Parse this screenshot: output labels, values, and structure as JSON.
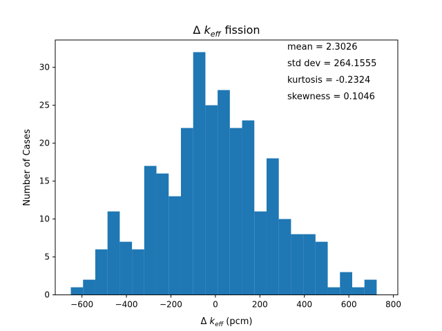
{
  "chart_data": {
    "type": "bar",
    "title_prefix": "Δ ",
    "title_k": "k",
    "title_sub": "eff",
    "title_suffix": "fission",
    "xlabel_prefix": "Δ ",
    "xlabel_k": "k",
    "xlabel_sub": "eff",
    "xlabel_suffix": " (pcm)",
    "ylabel": "Number of Cases",
    "xlim": [
      -720,
      820
    ],
    "ylim": [
      0,
      33.6
    ],
    "x_ticks": [
      -600,
      -400,
      -200,
      0,
      200,
      400,
      600,
      800
    ],
    "x_tick_labels": [
      "−600",
      "−400",
      "−200",
      "0",
      "200",
      "400",
      "600",
      "800"
    ],
    "y_ticks": [
      0,
      5,
      10,
      15,
      20,
      25,
      30
    ],
    "y_tick_labels": [
      "0",
      "5",
      "10",
      "15",
      "20",
      "25",
      "30"
    ],
    "bar_color": "#1f77b4",
    "bin_start": -650,
    "bin_width": 55,
    "values": [
      1,
      2,
      6,
      11,
      7,
      6,
      17,
      16,
      13,
      22,
      32,
      25,
      27,
      22,
      23,
      11,
      18,
      10,
      8,
      8,
      7,
      1,
      3,
      1,
      2
    ],
    "grid": false,
    "stats": [
      "mean = 2.3026",
      "std dev = 264.1555",
      "kurtosis = -0.2324",
      "skewness = 0.1046"
    ]
  }
}
